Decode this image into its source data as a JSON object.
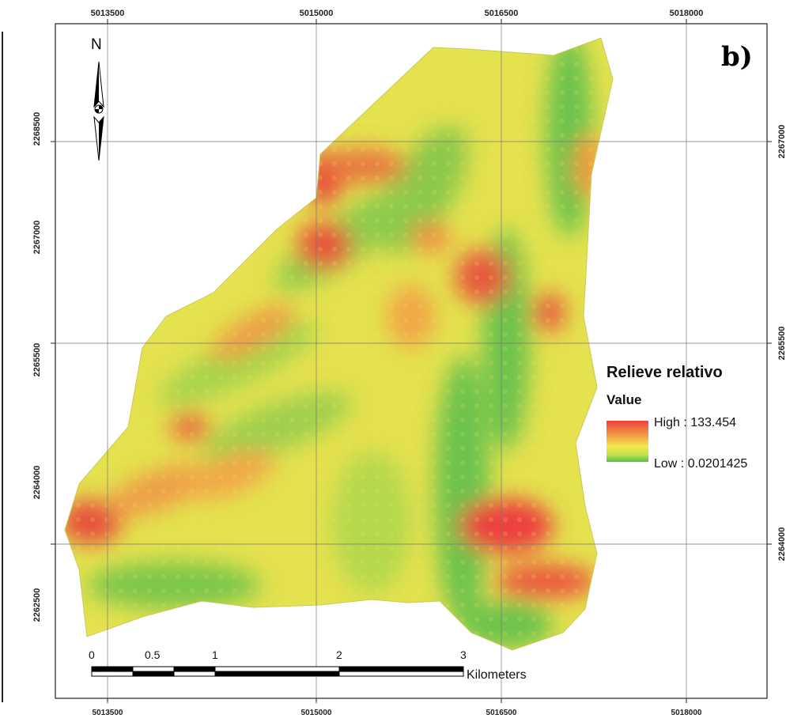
{
  "panel_label": "b)",
  "north_arrow": {
    "label": "N",
    "icon": "north-arrow-icon"
  },
  "axes": {
    "top_ticks": [
      "5013500",
      "5015000",
      "5016500",
      "5018000"
    ],
    "bottom_ticks": [
      "5013500",
      "5015000",
      "5016500",
      "5018000"
    ],
    "left_ticks": [
      "2268500",
      "2267000",
      "2265500",
      "2264000",
      "2262500"
    ],
    "right_ticks": [
      "2267000",
      "2265500",
      "2264000"
    ]
  },
  "legend": {
    "title": "Relieve relativo",
    "subtitle": "Value",
    "high_label": "High : 133.454",
    "low_label": "Low : 0.0201425",
    "colors": {
      "high": "#ee3d3d",
      "mid": "#f4e84c",
      "low": "#54c24d"
    }
  },
  "scale_bar": {
    "labels": [
      "0",
      "0.5",
      "1",
      "2",
      "3"
    ],
    "unit": "Kilometers"
  }
}
